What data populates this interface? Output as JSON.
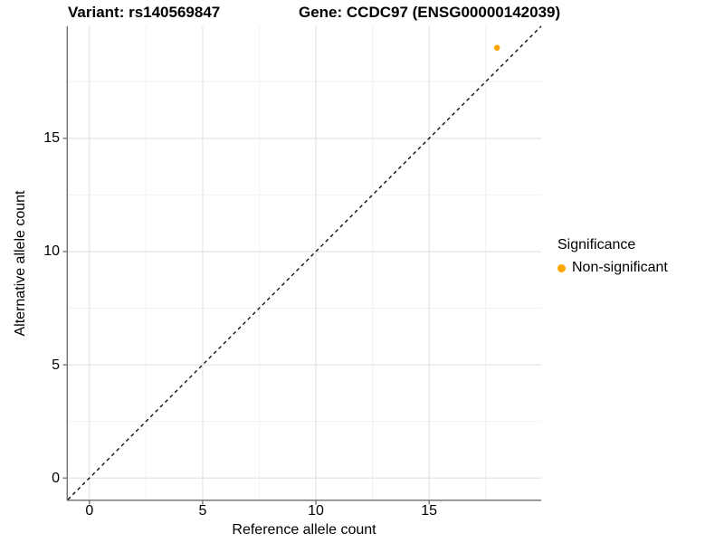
{
  "chart_data": {
    "type": "scatter",
    "titles": {
      "left": "Variant: rs140569847",
      "right": "Gene: CCDC97 (ENSG00000142039)"
    },
    "xlabel": "Reference allele count",
    "ylabel": "Alternative allele count",
    "x_ticks": [
      0,
      5,
      10,
      15
    ],
    "y_ticks": [
      0,
      5,
      10,
      15
    ],
    "x_minor_ticks": [
      2.5,
      7.5,
      12.5,
      17.5
    ],
    "y_minor_ticks": [
      2.5,
      7.5,
      12.5,
      17.5
    ],
    "xlim": [
      -0.95,
      19.95
    ],
    "ylim": [
      -0.95,
      19.95
    ],
    "grid": "major and minor gridlines, light gray, white panel",
    "series": [
      {
        "name": "Non-significant",
        "color": "#FFA500",
        "points": [
          {
            "x": 18,
            "y": 19
          }
        ]
      }
    ],
    "identity_line": {
      "equation": "y = x",
      "style": "dashed",
      "color": "#000000"
    },
    "legend": {
      "title": "Significance",
      "position": "right",
      "entries": [
        {
          "label": "Non-significant",
          "color": "#FFA500"
        }
      ]
    }
  },
  "colors": {
    "background": "#FFFFFF",
    "grid_major": "#E4E4E4",
    "grid_minor": "#F2F2F2",
    "axis_line": "#777777",
    "tick_mark": "#777777",
    "text": "#000000",
    "point": "#FFA500"
  }
}
